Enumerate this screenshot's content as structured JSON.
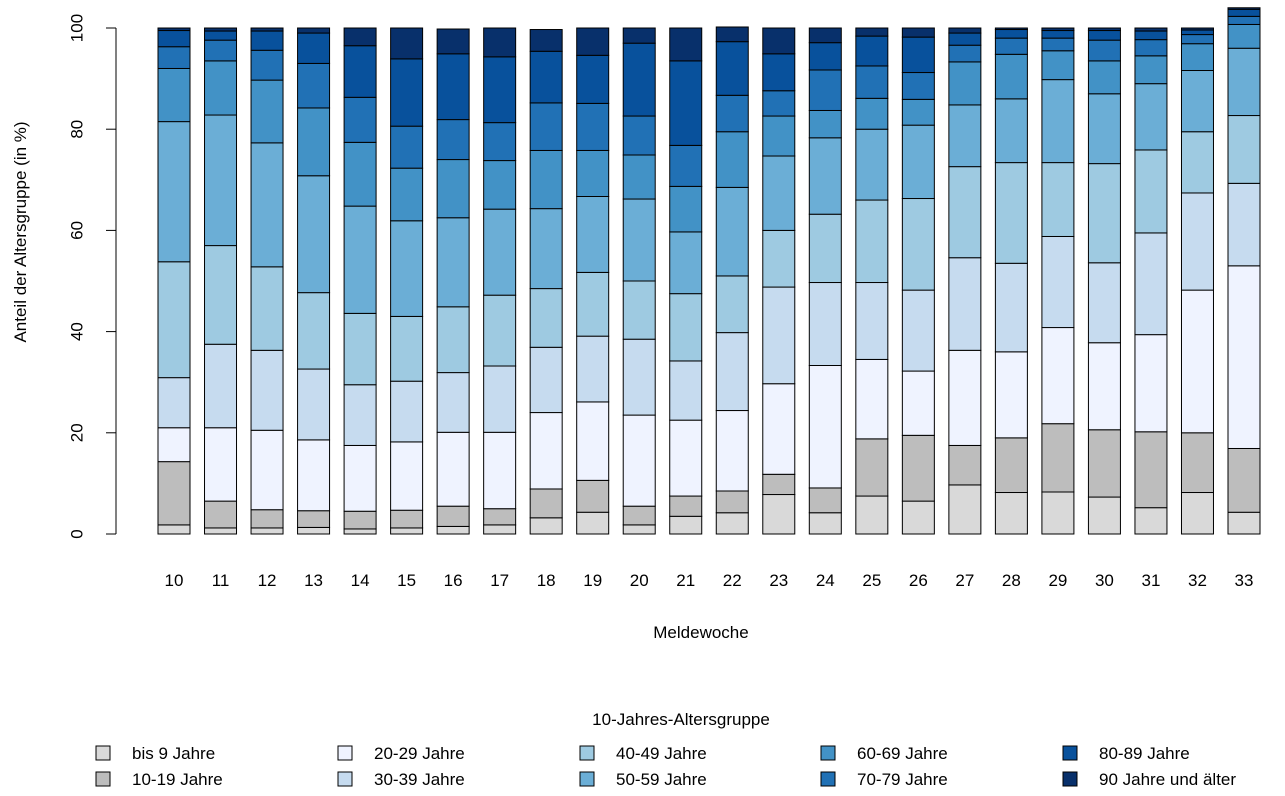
{
  "chart_data": {
    "type": "bar",
    "stacked": true,
    "title": "",
    "xlabel": "Meldewoche",
    "ylabel": "Anteil der Altersgruppe (in %)",
    "ylim": [
      0,
      100
    ],
    "yticks": [
      "0",
      "20",
      "40",
      "60",
      "80",
      "100"
    ],
    "categories": [
      "10",
      "11",
      "12",
      "13",
      "14",
      "15",
      "16",
      "17",
      "18",
      "19",
      "20",
      "21",
      "22",
      "23",
      "24",
      "25",
      "26",
      "27",
      "28",
      "29",
      "30",
      "31",
      "32",
      "33"
    ],
    "legend_title": "10-Jahres-Altersgruppe",
    "legend_position": "bottom",
    "series": [
      {
        "name": "bis 9 Jahre",
        "color": "#d9d9d9",
        "values": [
          1.8,
          1.2,
          1.2,
          1.3,
          1.0,
          1.2,
          1.5,
          1.8,
          3.2,
          4.3,
          1.8,
          3.5,
          4.2,
          7.8,
          4.2,
          7.5,
          6.5,
          9.7,
          8.2,
          8.3,
          7.3,
          5.2,
          8.2,
          4.3
        ]
      },
      {
        "name": "10-19 Jahre",
        "color": "#bdbdbd",
        "values": [
          12.5,
          5.3,
          3.6,
          3.3,
          3.5,
          3.5,
          4.0,
          3.2,
          5.7,
          6.3,
          3.7,
          4.0,
          4.3,
          4.0,
          4.9,
          11.3,
          13.0,
          7.8,
          10.8,
          13.5,
          13.3,
          15.0,
          11.8,
          12.6
        ]
      },
      {
        "name": "20-29 Jahre",
        "color": "#eff3ff",
        "values": [
          6.7,
          14.5,
          15.7,
          14.0,
          13.0,
          13.5,
          14.6,
          15.1,
          15.1,
          15.5,
          18.0,
          15.0,
          15.9,
          17.9,
          24.2,
          15.7,
          12.7,
          18.8,
          17.0,
          19.0,
          17.2,
          19.2,
          28.2,
          36.1
        ]
      },
      {
        "name": "30-39 Jahre",
        "color": "#c6dbef",
        "values": [
          9.9,
          16.5,
          15.8,
          14.0,
          12.0,
          12.0,
          11.8,
          13.1,
          12.9,
          13.0,
          15.0,
          11.7,
          15.4,
          19.1,
          16.4,
          15.2,
          16.0,
          18.3,
          17.5,
          18.0,
          15.8,
          20.1,
          19.2,
          16.3
        ]
      },
      {
        "name": "40-49 Jahre",
        "color": "#9ecae1",
        "values": [
          22.9,
          19.5,
          16.5,
          15.1,
          14.1,
          12.8,
          13.0,
          14.0,
          11.6,
          12.6,
          11.5,
          13.3,
          11.2,
          11.2,
          13.5,
          16.3,
          18.1,
          18.0,
          19.9,
          14.6,
          19.6,
          16.4,
          12.1,
          13.4
        ]
      },
      {
        "name": "50-59 Jahre",
        "color": "#6baed6",
        "values": [
          27.7,
          25.8,
          24.5,
          23.1,
          21.2,
          18.9,
          17.6,
          17.0,
          15.8,
          15.0,
          16.2,
          12.2,
          17.5,
          14.7,
          15.1,
          14.0,
          14.5,
          12.2,
          12.6,
          16.4,
          13.8,
          13.1,
          12.1,
          13.3
        ]
      },
      {
        "name": "60-69 Jahre",
        "color": "#4292c6",
        "values": [
          10.5,
          10.7,
          12.4,
          13.4,
          12.6,
          10.4,
          11.5,
          9.6,
          11.5,
          9.1,
          8.7,
          9.0,
          11.0,
          7.9,
          5.4,
          6.1,
          5.1,
          8.5,
          8.8,
          5.7,
          6.5,
          5.5,
          5.3,
          4.7
        ]
      },
      {
        "name": "70-79 Jahre",
        "color": "#2171b5",
        "values": [
          4.3,
          4.1,
          5.9,
          8.8,
          8.9,
          8.3,
          7.9,
          7.5,
          9.4,
          9.3,
          7.7,
          8.1,
          7.2,
          5.0,
          8.0,
          6.4,
          5.3,
          3.3,
          3.2,
          2.5,
          4.1,
          3.2,
          1.8,
          1.6
        ]
      },
      {
        "name": "80-89 Jahre",
        "color": "#08519c",
        "values": [
          3.2,
          1.8,
          3.8,
          6.0,
          10.2,
          13.3,
          13.0,
          13.0,
          10.2,
          9.5,
          14.4,
          16.7,
          10.6,
          7.3,
          5.4,
          5.9,
          7.0,
          2.4,
          1.7,
          1.5,
          1.9,
          1.7,
          0.9,
          1.4
        ]
      },
      {
        "name": "90 Jahre und älter",
        "color": "#08306b",
        "values": [
          0.5,
          0.6,
          0.6,
          1.0,
          3.5,
          6.1,
          4.9,
          5.7,
          4.3,
          5.4,
          3.0,
          6.5,
          2.9,
          5.1,
          2.9,
          1.6,
          1.8,
          1.0,
          0.3,
          0.5,
          0.5,
          0.6,
          0.4,
          0.3
        ]
      }
    ]
  }
}
